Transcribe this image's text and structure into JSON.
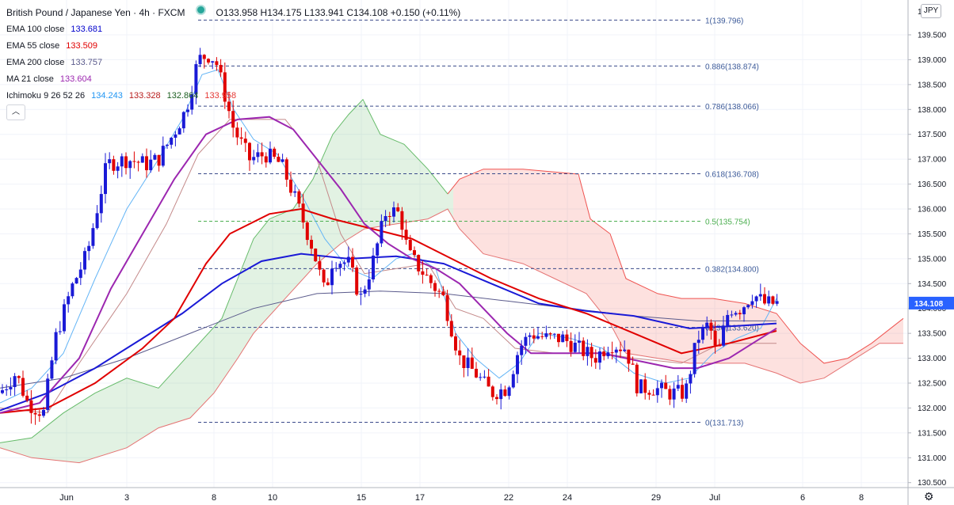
{
  "header": {
    "symbol": "British Pound / Japanese Yen · 4h · FXCM",
    "status_color": "#26a69a",
    "ohlc": [
      {
        "k": "O",
        "v": "133.958"
      },
      {
        "k": "H",
        "v": "134.175"
      },
      {
        "k": "L",
        "v": "133.941"
      },
      {
        "k": "C",
        "v": "134.108"
      }
    ],
    "change": "+0.150 (+0.11%)"
  },
  "indicators": [
    {
      "label": "EMA 100 close",
      "value": "133.681",
      "color": "#0000cc"
    },
    {
      "label": "EMA 55 close",
      "value": "133.509",
      "color": "#e00000"
    },
    {
      "label": "EMA 200 close",
      "value": "133.757",
      "color": "#5b5b8c"
    },
    {
      "label": "MA 21 close",
      "value": "133.604",
      "color": "#9c27b0"
    }
  ],
  "ichimoku": {
    "label": "Ichimoku 9 26 52 26",
    "values": [
      {
        "v": "134.243",
        "color": "#2196f3"
      },
      {
        "v": "133.328",
        "color": "#b71c1c"
      },
      {
        "v": "132.864",
        "color": "#1b5e20"
      },
      {
        "v": "133.958",
        "color": "#e53935"
      }
    ]
  },
  "collapse_icon": "chevron-up-icon",
  "currency_badge": "JPY",
  "settings_icon": "gear-icon",
  "chart_data": {
    "type": "candlestick",
    "x_ticks": [
      "Jun",
      "3",
      "8",
      "10",
      "15",
      "17",
      "22",
      "24",
      "29",
      "Jul",
      "6",
      "8"
    ],
    "y_ticks": [
      "139.500",
      "139.000",
      "138.500",
      "138.000",
      "137.500",
      "137.000",
      "136.500",
      "136.000",
      "135.500",
      "135.000",
      "134.500",
      "134.000",
      "133.500",
      "133.000",
      "132.500",
      "132.000",
      "131.500",
      "131.000",
      "130.500"
    ],
    "y_top_label": "1",
    "ylim": [
      130.4,
      140.2
    ],
    "last_price": {
      "value": 134.108,
      "label": "134.108",
      "color": "#2962ff"
    },
    "fibonacci": [
      {
        "level": "1",
        "value": 139.796,
        "label": "1(139.796)"
      },
      {
        "level": "0.886",
        "value": 138.874,
        "label": "0.886(138.874)"
      },
      {
        "level": "0.786",
        "value": 138.066,
        "label": "0.786(138.066)"
      },
      {
        "level": "0.618",
        "value": 136.708,
        "label": "0.618(136.708)"
      },
      {
        "level": "0.5",
        "value": 135.754,
        "label": "0.5(135.754)",
        "color": "#4caf50"
      },
      {
        "level": "0.382",
        "value": 134.8,
        "label": "0.382(134.800)"
      },
      {
        "level": "0.236",
        "value": 133.62,
        "label": "0.236(133.620)"
      },
      {
        "level": "0",
        "value": 131.713,
        "label": "0(131.713)"
      }
    ],
    "price_path": [
      [
        0,
        132.3
      ],
      [
        20,
        132.7
      ],
      [
        35,
        132.1
      ],
      [
        55,
        131.9
      ],
      [
        70,
        133.4
      ],
      [
        90,
        134.4
      ],
      [
        110,
        135.1
      ],
      [
        135,
        136.9
      ],
      [
        160,
        137.0
      ],
      [
        185,
        136.9
      ],
      [
        200,
        137.0
      ],
      [
        215,
        137.4
      ],
      [
        235,
        138.0
      ],
      [
        250,
        139.0
      ],
      [
        262,
        139.1
      ],
      [
        272,
        139.0
      ],
      [
        282,
        138.4
      ],
      [
        295,
        137.6
      ],
      [
        315,
        137.0
      ],
      [
        335,
        137.1
      ],
      [
        355,
        136.9
      ],
      [
        375,
        136.1
      ],
      [
        395,
        135.2
      ],
      [
        410,
        134.3
      ],
      [
        420,
        135.0
      ],
      [
        440,
        134.9
      ],
      [
        455,
        134.2
      ],
      [
        470,
        134.9
      ],
      [
        488,
        136.0
      ],
      [
        505,
        135.9
      ],
      [
        515,
        135.1
      ],
      [
        535,
        134.7
      ],
      [
        560,
        134.2
      ],
      [
        580,
        133.0
      ],
      [
        600,
        132.7
      ],
      [
        620,
        132.3
      ],
      [
        640,
        132.4
      ],
      [
        655,
        133.2
      ],
      [
        670,
        133.5
      ],
      [
        690,
        133.4
      ],
      [
        710,
        133.4
      ],
      [
        730,
        133.2
      ],
      [
        750,
        133.0
      ],
      [
        770,
        133.3
      ],
      [
        790,
        133.2
      ],
      [
        805,
        132.4
      ],
      [
        825,
        132.4
      ],
      [
        845,
        132.3
      ],
      [
        865,
        132.3
      ],
      [
        880,
        133.4
      ],
      [
        895,
        133.7
      ],
      [
        905,
        133.0
      ],
      [
        920,
        134.0
      ],
      [
        935,
        134.0
      ],
      [
        950,
        134.3
      ],
      [
        965,
        134.1
      ],
      [
        985,
        134.1
      ]
    ],
    "ema55": [
      [
        0,
        131.9
      ],
      [
        60,
        132.0
      ],
      [
        120,
        132.5
      ],
      [
        180,
        133.2
      ],
      [
        220,
        133.8
      ],
      [
        260,
        134.9
      ],
      [
        290,
        135.5
      ],
      [
        340,
        135.9
      ],
      [
        380,
        136.0
      ],
      [
        420,
        135.8
      ],
      [
        470,
        135.6
      ],
      [
        520,
        135.4
      ],
      [
        570,
        135.0
      ],
      [
        620,
        134.6
      ],
      [
        680,
        134.2
      ],
      [
        740,
        133.9
      ],
      [
        800,
        133.5
      ],
      [
        860,
        133.1
      ],
      [
        920,
        133.3
      ],
      [
        980,
        133.55
      ]
    ],
    "ema100": [
      [
        0,
        131.95
      ],
      [
        60,
        132.3
      ],
      [
        120,
        132.8
      ],
      [
        180,
        133.4
      ],
      [
        230,
        133.9
      ],
      [
        280,
        134.5
      ],
      [
        330,
        134.95
      ],
      [
        380,
        135.1
      ],
      [
        440,
        135.0
      ],
      [
        500,
        135.05
      ],
      [
        560,
        134.9
      ],
      [
        620,
        134.5
      ],
      [
        680,
        134.1
      ],
      [
        740,
        133.95
      ],
      [
        800,
        133.85
      ],
      [
        870,
        133.6
      ],
      [
        930,
        133.65
      ],
      [
        980,
        133.7
      ]
    ],
    "ema200": [
      [
        0,
        132.4
      ],
      [
        80,
        132.6
      ],
      [
        160,
        133.0
      ],
      [
        240,
        133.5
      ],
      [
        320,
        134.0
      ],
      [
        400,
        134.3
      ],
      [
        480,
        134.35
      ],
      [
        560,
        134.3
      ],
      [
        640,
        134.15
      ],
      [
        720,
        134.0
      ],
      [
        800,
        133.85
      ],
      [
        880,
        133.75
      ],
      [
        980,
        133.75
      ]
    ],
    "ma21": [
      [
        0,
        131.9
      ],
      [
        50,
        132.1
      ],
      [
        100,
        133.0
      ],
      [
        140,
        134.4
      ],
      [
        180,
        135.5
      ],
      [
        220,
        136.6
      ],
      [
        260,
        137.5
      ],
      [
        300,
        137.8
      ],
      [
        340,
        137.85
      ],
      [
        370,
        137.6
      ],
      [
        400,
        137.0
      ],
      [
        430,
        136.4
      ],
      [
        460,
        135.7
      ],
      [
        490,
        135.3
      ],
      [
        520,
        135.0
      ],
      [
        550,
        134.8
      ],
      [
        580,
        134.5
      ],
      [
        610,
        134.0
      ],
      [
        640,
        133.5
      ],
      [
        670,
        133.1
      ],
      [
        700,
        133.1
      ],
      [
        730,
        133.1
      ],
      [
        760,
        133.1
      ],
      [
        790,
        133.0
      ],
      [
        820,
        132.9
      ],
      [
        850,
        132.8
      ],
      [
        880,
        132.8
      ],
      [
        920,
        133.0
      ],
      [
        950,
        133.3
      ],
      [
        980,
        133.6
      ]
    ],
    "cloud_upper": [
      [
        0,
        131.3
      ],
      [
        40,
        131.4
      ],
      [
        80,
        131.9
      ],
      [
        120,
        132.3
      ],
      [
        160,
        132.6
      ],
      [
        200,
        132.4
      ],
      [
        240,
        133.1
      ],
      [
        280,
        133.8
      ],
      [
        300,
        134.6
      ],
      [
        320,
        135.4
      ],
      [
        340,
        135.8
      ],
      [
        370,
        136.0
      ],
      [
        395,
        136.6
      ],
      [
        420,
        137.5
      ],
      [
        440,
        137.9
      ],
      [
        458,
        138.2
      ],
      [
        480,
        137.5
      ],
      [
        510,
        137.3
      ],
      [
        540,
        136.8
      ],
      [
        565,
        136.3
      ],
      [
        580,
        136.6
      ],
      [
        610,
        136.8
      ],
      [
        660,
        136.8
      ],
      [
        730,
        136.7
      ],
      [
        745,
        135.8
      ],
      [
        770,
        135.5
      ],
      [
        790,
        134.6
      ],
      [
        830,
        134.3
      ],
      [
        860,
        134.2
      ],
      [
        900,
        134.2
      ],
      [
        940,
        134.1
      ],
      [
        980,
        133.9
      ],
      [
        1010,
        133.3
      ],
      [
        1040,
        132.9
      ],
      [
        1070,
        133.0
      ],
      [
        1100,
        133.3
      ],
      [
        1140,
        133.8
      ]
    ],
    "cloud_lower": [
      [
        0,
        131.2
      ],
      [
        40,
        131.0
      ],
      [
        100,
        130.9
      ],
      [
        160,
        131.2
      ],
      [
        200,
        131.6
      ],
      [
        240,
        131.8
      ],
      [
        270,
        132.3
      ],
      [
        300,
        133.0
      ],
      [
        320,
        133.5
      ],
      [
        360,
        134.2
      ],
      [
        400,
        134.9
      ],
      [
        430,
        135.3
      ],
      [
        460,
        135.6
      ],
      [
        500,
        135.7
      ],
      [
        540,
        135.8
      ],
      [
        565,
        136.0
      ],
      [
        580,
        135.6
      ],
      [
        610,
        135.1
      ],
      [
        660,
        134.9
      ],
      [
        700,
        134.6
      ],
      [
        740,
        134.3
      ],
      [
        770,
        133.7
      ],
      [
        790,
        133.1
      ],
      [
        830,
        133.0
      ],
      [
        870,
        132.9
      ],
      [
        910,
        132.9
      ],
      [
        940,
        132.9
      ],
      [
        980,
        132.7
      ],
      [
        1010,
        132.5
      ],
      [
        1040,
        132.6
      ],
      [
        1080,
        133.0
      ],
      [
        1110,
        133.3
      ],
      [
        1140,
        133.3
      ]
    ],
    "kijun": [
      [
        0,
        132.0
      ],
      [
        60,
        131.9
      ],
      [
        100,
        132.9
      ],
      [
        160,
        134.3
      ],
      [
        210,
        135.7
      ],
      [
        250,
        137.1
      ],
      [
        290,
        137.8
      ],
      [
        330,
        137.8
      ],
      [
        360,
        137.8
      ],
      [
        400,
        137.0
      ],
      [
        430,
        135.5
      ],
      [
        460,
        134.7
      ],
      [
        500,
        134.8
      ],
      [
        540,
        134.9
      ],
      [
        575,
        134.0
      ],
      [
        610,
        133.8
      ],
      [
        650,
        133.2
      ],
      [
        700,
        133.1
      ],
      [
        760,
        133.1
      ],
      [
        800,
        133.0
      ],
      [
        860,
        132.9
      ],
      [
        910,
        133.3
      ],
      [
        980,
        133.3
      ]
    ],
    "tenkan": [
      [
        0,
        132.1
      ],
      [
        40,
        132.4
      ],
      [
        80,
        133.1
      ],
      [
        120,
        134.6
      ],
      [
        160,
        136.0
      ],
      [
        200,
        137.0
      ],
      [
        230,
        137.8
      ],
      [
        255,
        138.7
      ],
      [
        275,
        138.8
      ],
      [
        295,
        138.0
      ],
      [
        320,
        137.4
      ],
      [
        350,
        137.1
      ],
      [
        380,
        136.3
      ],
      [
        410,
        135.4
      ],
      [
        440,
        134.8
      ],
      [
        470,
        134.6
      ],
      [
        500,
        135.0
      ],
      [
        520,
        135.1
      ],
      [
        550,
        134.8
      ],
      [
        575,
        133.5
      ],
      [
        600,
        133.0
      ],
      [
        630,
        132.6
      ],
      [
        655,
        132.9
      ],
      [
        680,
        133.5
      ],
      [
        720,
        133.4
      ],
      [
        760,
        133.2
      ],
      [
        800,
        132.7
      ],
      [
        840,
        132.5
      ],
      [
        870,
        132.6
      ],
      [
        900,
        133.1
      ],
      [
        930,
        133.4
      ],
      [
        960,
        133.6
      ],
      [
        980,
        134.2
      ]
    ]
  }
}
